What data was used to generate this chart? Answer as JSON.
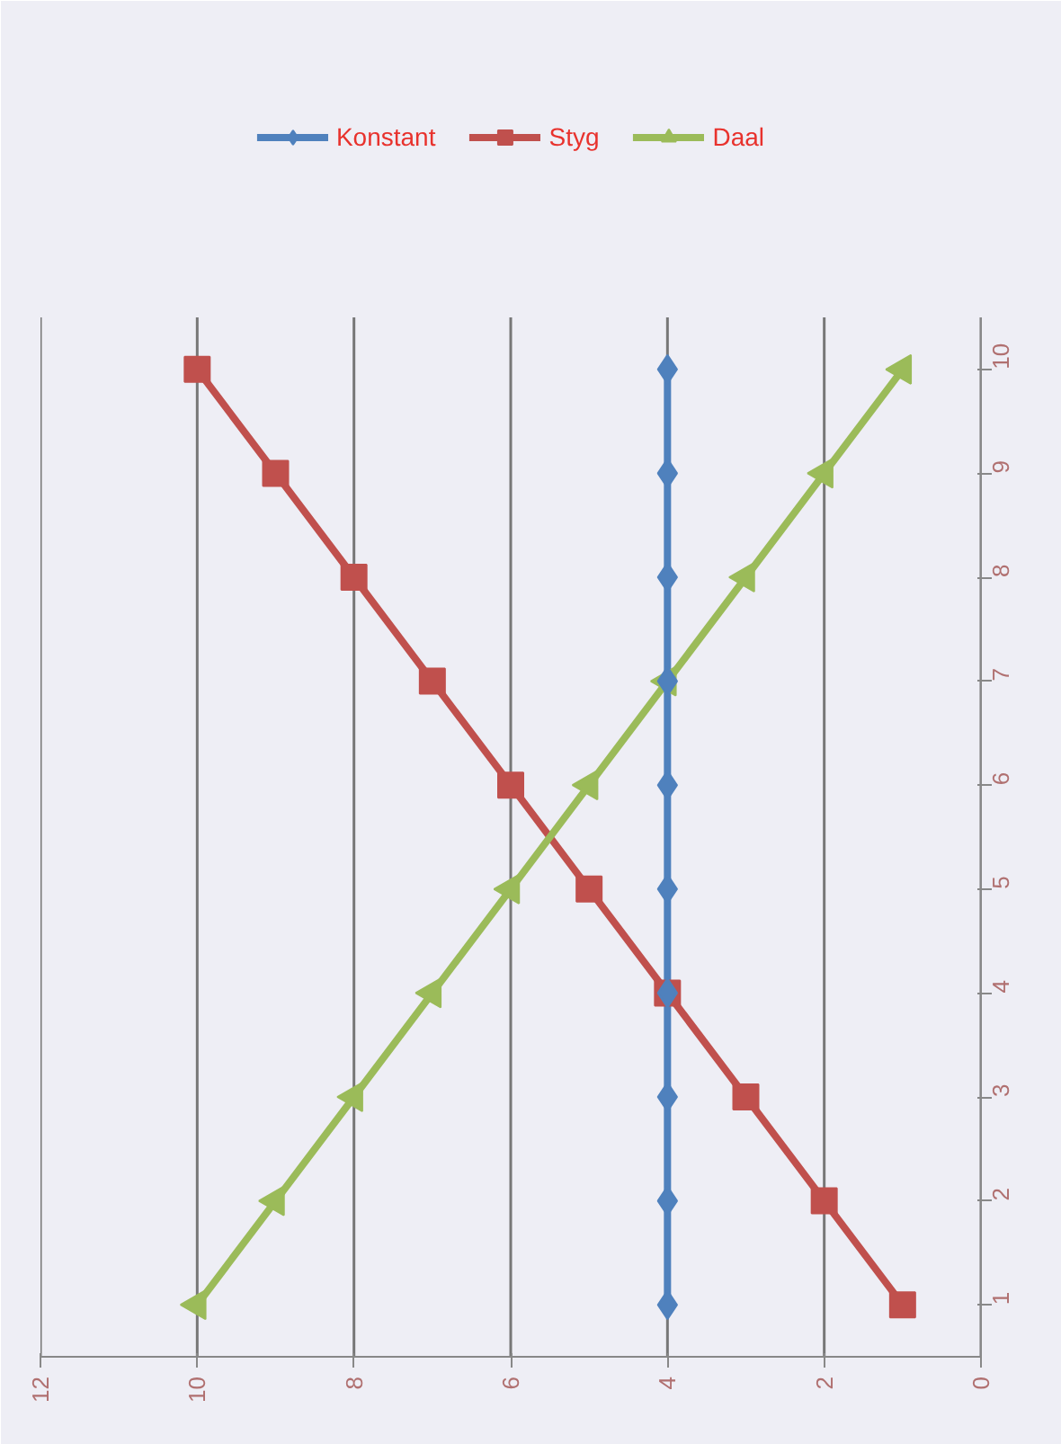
{
  "chart_data": {
    "type": "line",
    "orientation": "horizontal",
    "categories": [
      "10",
      "9",
      "8",
      "7",
      "6",
      "5",
      "4",
      "3",
      "2",
      "1"
    ],
    "xlim": [
      12,
      0
    ],
    "xticks": [
      0,
      2,
      4,
      6,
      8,
      10,
      12
    ],
    "grid": "x",
    "legend": "top",
    "line_style": "solid",
    "series": [
      {
        "name": "Konstant",
        "color": "#4f81bd",
        "marker": "diamond",
        "values": [
          4,
          4,
          4,
          4,
          4,
          4,
          4,
          4,
          4,
          4
        ]
      },
      {
        "name": "Styg",
        "color": "#c0504d",
        "marker": "square",
        "values": [
          10,
          9,
          8,
          7,
          6,
          5,
          4,
          3,
          2,
          1
        ]
      },
      {
        "name": "Daal",
        "color": "#9bbb59",
        "marker": "triangle",
        "values": [
          1,
          2,
          3,
          4,
          5,
          6,
          7,
          8,
          9,
          10
        ]
      }
    ]
  }
}
